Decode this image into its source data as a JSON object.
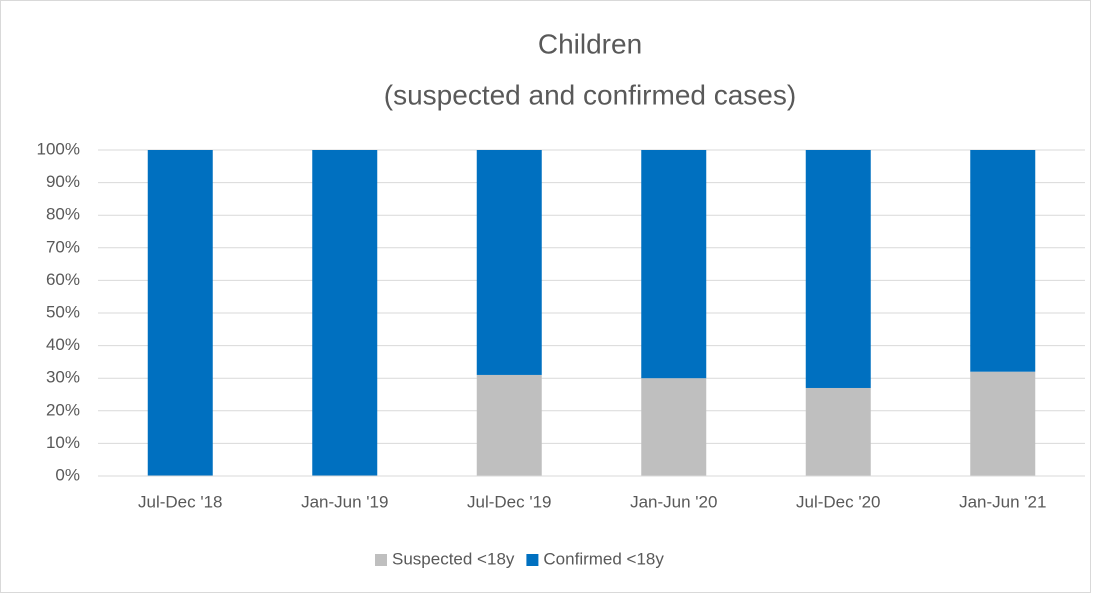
{
  "chart_data": {
    "type": "stacked_bar",
    "title": "Children",
    "subtitle": "(suspected and confirmed cases)",
    "categories": [
      "Jul-Dec '18",
      "Jan-Jun '19",
      "Jul-Dec '19",
      "Jan-Jun '20",
      "Jul-Dec '20",
      "Jan-Jun '21"
    ],
    "series": [
      {
        "name": "Suspected <18y",
        "color": "#bfbfbf",
        "values": [
          0,
          0,
          31,
          30,
          27,
          32
        ]
      },
      {
        "name": "Confirmed <18y",
        "color": "#0070c0",
        "values": [
          100,
          100,
          69,
          70,
          73,
          68
        ]
      }
    ],
    "ylim": [
      0,
      100
    ],
    "yticks": [
      {
        "value": 0,
        "label": "0%"
      },
      {
        "value": 10,
        "label": "10%"
      },
      {
        "value": 20,
        "label": "20%"
      },
      {
        "value": 30,
        "label": "30%"
      },
      {
        "value": 40,
        "label": "40%"
      },
      {
        "value": 50,
        "label": "50%"
      },
      {
        "value": 60,
        "label": "60%"
      },
      {
        "value": 70,
        "label": "70%"
      },
      {
        "value": 80,
        "label": "80%"
      },
      {
        "value": 90,
        "label": "90%"
      },
      {
        "value": 100,
        "label": "100%"
      }
    ],
    "grid": true,
    "legend": "bottom"
  }
}
